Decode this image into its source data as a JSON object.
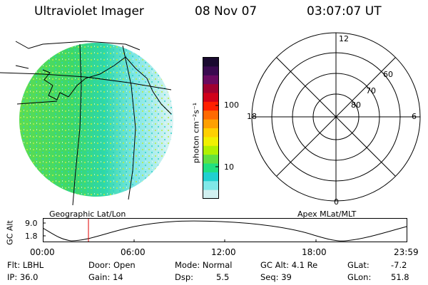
{
  "header": {
    "title": "Ultraviolet Imager",
    "date": "08 Nov 07",
    "time": "03:07:07 UT"
  },
  "colorbar": {
    "unit_label": "photon cm⁻²s⁻¹",
    "ticks": [
      "100",
      "10"
    ],
    "colors": [
      "#1a0a30",
      "#3a0a50",
      "#6a0a60",
      "#a00030",
      "#d0001a",
      "#ff2000",
      "#ff6a00",
      "#ffa000",
      "#ffd000",
      "#f0f000",
      "#b0f000",
      "#60e040",
      "#20e080",
      "#20d0d0",
      "#80e8e8",
      "#d0f0f0"
    ]
  },
  "polar_plot": {
    "mlt_labels": {
      "top": "12",
      "left": "18",
      "right": "6",
      "bottom": "0"
    },
    "lat_labels": [
      "60",
      "70",
      "80"
    ]
  },
  "map_labels": {
    "left": "Geographic Lat/Lon",
    "right": "Apex MLat/MLT"
  },
  "altitude_plot": {
    "axis_label": "GC Alt",
    "y_ticks": [
      "9.0",
      "1.8"
    ],
    "x_ticks": [
      "00:00",
      "06:00",
      "12:00",
      "18:00",
      "23:59"
    ],
    "marker_color": "#e00000"
  },
  "status": {
    "row1": {
      "flt": "Flt: LBHL",
      "door": "Door: Open",
      "mode": "Mode: Normal",
      "gcalt": "GC Alt: 4.1 Re",
      "glat_label": "GLat:",
      "glat_value": "-7.2"
    },
    "row2": {
      "ip": "IP: 36.0",
      "gain": "Gain: 14",
      "dsp_label": "Dsp:",
      "dsp_value": "5.5",
      "seq": "Seq: 39",
      "glon_label": "GLon:",
      "glon_value": "51.8"
    }
  }
}
